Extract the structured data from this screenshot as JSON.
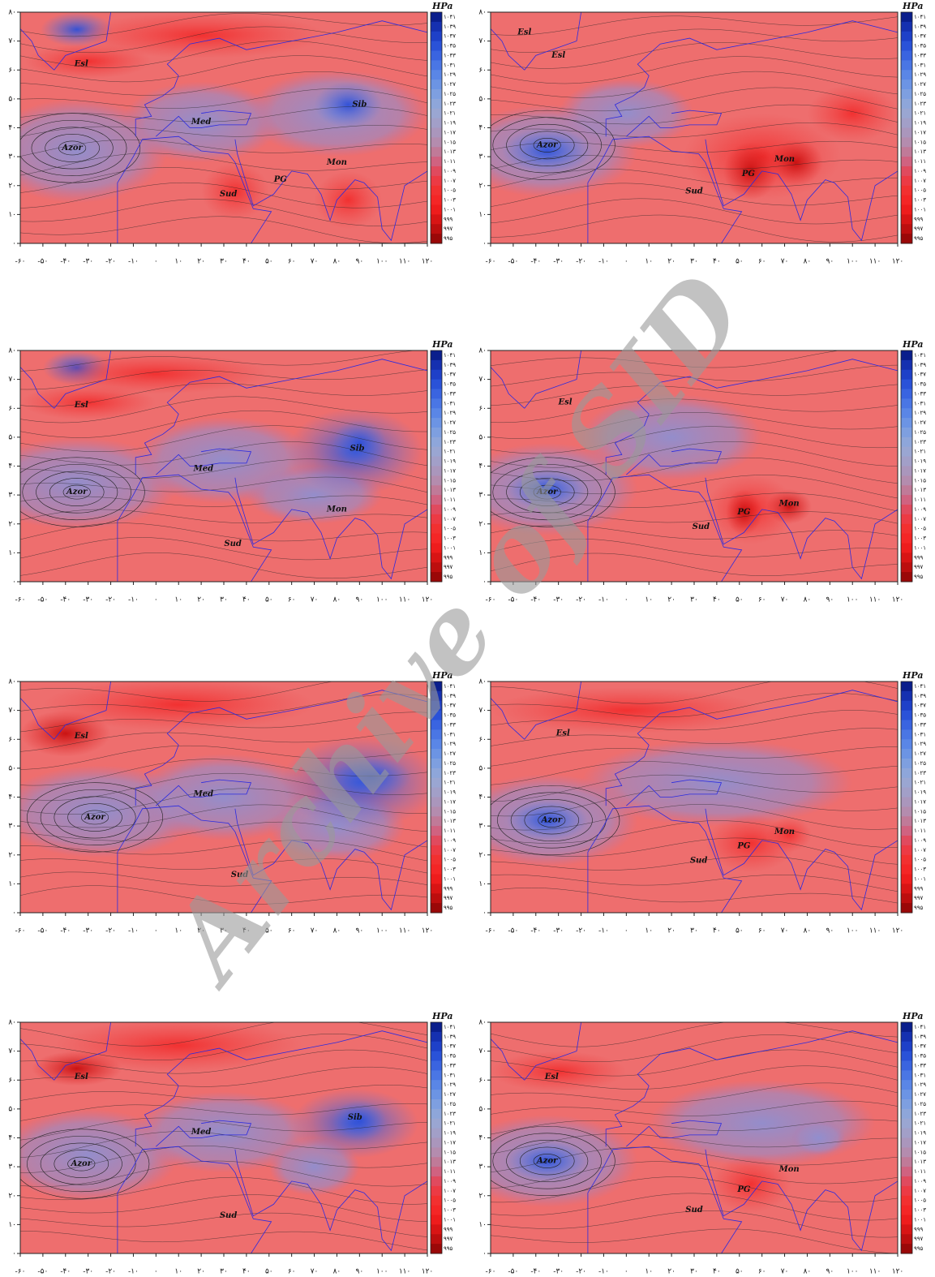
{
  "axes": {
    "xticks": [
      {
        "value": -60,
        "label": "-۶۰"
      },
      {
        "value": -50,
        "label": "-۵۰"
      },
      {
        "value": -40,
        "label": "-۴۰"
      },
      {
        "value": -30,
        "label": "-۳۰"
      },
      {
        "value": -20,
        "label": "-۲۰"
      },
      {
        "value": -10,
        "label": "-۱۰"
      },
      {
        "value": 0,
        "label": "۰"
      },
      {
        "value": 10,
        "label": "۱۰"
      },
      {
        "value": 20,
        "label": "۲۰"
      },
      {
        "value": 30,
        "label": "۳۰"
      },
      {
        "value": 40,
        "label": "۴۰"
      },
      {
        "value": 50,
        "label": "۵۰"
      },
      {
        "value": 60,
        "label": "۶۰"
      },
      {
        "value": 70,
        "label": "۷۰"
      },
      {
        "value": 80,
        "label": "۸۰"
      },
      {
        "value": 90,
        "label": "۹۰"
      },
      {
        "value": 100,
        "label": "۱۰۰"
      },
      {
        "value": 110,
        "label": "۱۱۰"
      },
      {
        "value": 120,
        "label": "۱۲۰"
      }
    ],
    "yticks": [
      {
        "value": 0,
        "label": "۰"
      },
      {
        "value": 10,
        "label": "۱۰"
      },
      {
        "value": 20,
        "label": "۲۰"
      },
      {
        "value": 30,
        "label": "۳۰"
      },
      {
        "value": 40,
        "label": "۴۰"
      },
      {
        "value": 50,
        "label": "۵۰"
      },
      {
        "value": 60,
        "label": "۶۰"
      },
      {
        "value": 70,
        "label": "۷۰"
      },
      {
        "value": 80,
        "label": "۸۰"
      }
    ]
  },
  "colorbar": {
    "unit": "HPa",
    "levels": [
      {
        "value": 1041,
        "label": "۱۰۴۱"
      },
      {
        "value": 1039,
        "label": "۱۰۳۹"
      },
      {
        "value": 1037,
        "label": "۱۰۳۷"
      },
      {
        "value": 1035,
        "label": "۱۰۳۵"
      },
      {
        "value": 1033,
        "label": "۱۰۳۳"
      },
      {
        "value": 1031,
        "label": "۱۰۳۱"
      },
      {
        "value": 1029,
        "label": "۱۰۲۹"
      },
      {
        "value": 1027,
        "label": "۱۰۲۷"
      },
      {
        "value": 1025,
        "label": "۱۰۲۵"
      },
      {
        "value": 1023,
        "label": "۱۰۲۳"
      },
      {
        "value": 1021,
        "label": "۱۰۲۱"
      },
      {
        "value": 1019,
        "label": "۱۰۱۹"
      },
      {
        "value": 1017,
        "label": "۱۰۱۷"
      },
      {
        "value": 1015,
        "label": "۱۰۱۵"
      },
      {
        "value": 1013,
        "label": "۱۰۱۳"
      },
      {
        "value": 1011,
        "label": "۱۰۱۱"
      },
      {
        "value": 1009,
        "label": "۱۰۰۹"
      },
      {
        "value": 1007,
        "label": "۱۰۰۷"
      },
      {
        "value": 1005,
        "label": "۱۰۰۵"
      },
      {
        "value": 1003,
        "label": "۱۰۰۳"
      },
      {
        "value": 1001,
        "label": "۱۰۰۱"
      },
      {
        "value": 999,
        "label": "۹۹۹"
      },
      {
        "value": 997,
        "label": "۹۹۷"
      },
      {
        "value": 995,
        "label": "۹۹۵"
      }
    ]
  },
  "panels": [
    {
      "labels": [
        "Esl",
        "Azor",
        "Med",
        "Sib",
        "Mon",
        "Sud",
        "PG"
      ]
    },
    {
      "labels": [
        "Esl",
        "Esl",
        "Azor",
        "Sud",
        "PG",
        "Mon"
      ]
    },
    {
      "labels": [
        "Esl",
        "Med",
        "Azor",
        "Sib",
        "Mon",
        "Sud"
      ]
    },
    {
      "labels": [
        "Esl",
        "Azor",
        "Sud",
        "PG",
        "Mon"
      ]
    },
    {
      "labels": [
        "Esl",
        "Med",
        "Azor",
        "Sud"
      ]
    },
    {
      "labels": [
        "Esl",
        "Azor",
        "Sud",
        "PG",
        "Mon"
      ]
    },
    {
      "labels": [
        "Esl",
        "Sib",
        "Med",
        "Azor",
        "Sud"
      ]
    },
    {
      "labels": [
        "Esl",
        "Azor",
        "Sud",
        "PG",
        "Mon"
      ]
    }
  ],
  "watermark": "Archive of SID"
}
